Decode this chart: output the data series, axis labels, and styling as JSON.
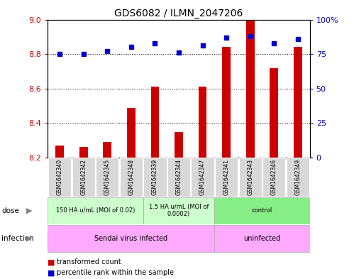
{
  "title": "GDS6082 / ILMN_2047206",
  "samples": [
    "GSM1642340",
    "GSM1642342",
    "GSM1642345",
    "GSM1642348",
    "GSM1642339",
    "GSM1642344",
    "GSM1642347",
    "GSM1642341",
    "GSM1642343",
    "GSM1642346",
    "GSM1642349"
  ],
  "bar_values": [
    8.27,
    8.26,
    8.29,
    8.49,
    8.61,
    8.35,
    8.61,
    8.84,
    9.0,
    8.72,
    8.84
  ],
  "dot_values": [
    75,
    75,
    77,
    80,
    83,
    76,
    81,
    87,
    88,
    83,
    86
  ],
  "bar_color": "#cc0000",
  "dot_color": "#0000cc",
  "ylim_left": [
    8.2,
    9.0
  ],
  "ylim_right": [
    0,
    100
  ],
  "yticks_left": [
    8.2,
    8.4,
    8.6,
    8.8,
    9.0
  ],
  "yticks_right": [
    0,
    25,
    50,
    75,
    100
  ],
  "ytick_labels_right": [
    "0",
    "25",
    "50",
    "75",
    "100%"
  ],
  "dose_groups": [
    {
      "label": "150 HA u/mL (MOI of 0.02)",
      "start": 0,
      "end": 3,
      "color": "#ccffcc"
    },
    {
      "label": "1.5 HA u/mL (MOI of\n0.0002)",
      "start": 4,
      "end": 6,
      "color": "#ccffcc"
    },
    {
      "label": "control",
      "start": 7,
      "end": 10,
      "color": "#99ff99"
    }
  ],
  "infection_groups": [
    {
      "label": "Sendai virus infected",
      "start": 0,
      "end": 6,
      "color": "#ffaaff"
    },
    {
      "label": "uninfected",
      "start": 7,
      "end": 10,
      "color": "#ffaaff"
    }
  ],
  "dose_label": "dose",
  "infection_label": "infection",
  "legend_bar_label": "transformed count",
  "legend_dot_label": "percentile rank within the sample",
  "base_value": 8.2,
  "bar_width": 0.35,
  "sample_box_color": "#d8d8d8",
  "dose_colors": [
    "#ccffcc",
    "#ccffcc",
    "#88ee88"
  ],
  "infection_color": "#ffaaff"
}
